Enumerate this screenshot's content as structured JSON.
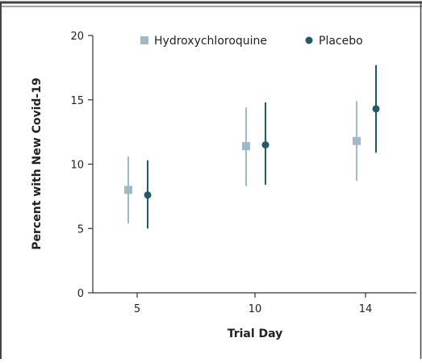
{
  "chart_data": {
    "type": "scatter",
    "subtype": "point-with-error-bars",
    "title": "",
    "xlabel": "Trial Day",
    "ylabel": "Percent with New Covid-19",
    "categories": [
      "5",
      "10",
      "14"
    ],
    "ylim": [
      0,
      20
    ],
    "yticks": [
      "0",
      "5",
      "10",
      "15",
      "20"
    ],
    "grid": false,
    "legend": "top",
    "series": [
      {
        "name": "Hydroxychloroquine",
        "marker": "square",
        "color": "#9fb9c8",
        "values": [
          8.0,
          11.4,
          11.8
        ],
        "lower": [
          5.4,
          8.3,
          8.7
        ],
        "upper": [
          10.6,
          14.4,
          14.9
        ]
      },
      {
        "name": "Placebo",
        "marker": "circle",
        "color": "#23596c",
        "values": [
          7.6,
          11.5,
          14.3
        ],
        "lower": [
          5.0,
          8.4,
          10.9
        ],
        "upper": [
          10.3,
          14.8,
          17.7
        ]
      }
    ]
  }
}
